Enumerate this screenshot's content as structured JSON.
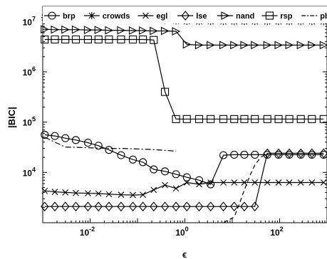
{
  "chart_data": {
    "type": "line",
    "xscale": "log",
    "yscale": "log",
    "xlim": [
      0.001,
      1000
    ],
    "ylim": [
      1000,
      20000000
    ],
    "xlabel": "ϵ",
    "ylabel": "|BIC|",
    "x_ticks": [
      {
        "base": "10",
        "exp": "-2",
        "v": 0.01
      },
      {
        "base": "10",
        "exp": "0",
        "v": 1
      },
      {
        "base": "10",
        "exp": "2",
        "v": 100
      }
    ],
    "y_ticks": [
      {
        "base": "10",
        "exp": "4",
        "v": 10000
      },
      {
        "base": "10",
        "exp": "5",
        "v": 100000
      },
      {
        "base": "10",
        "exp": "6",
        "v": 1000000
      },
      {
        "base": "10",
        "exp": "7",
        "v": 10000000
      }
    ],
    "legend_position": "top",
    "series": [
      {
        "name": "brp",
        "marker": "circle",
        "style": "solid",
        "x": [
          0.0011,
          0.0018,
          0.003,
          0.005,
          0.009,
          0.015,
          0.025,
          0.045,
          0.08,
          0.13,
          0.22,
          0.38,
          0.65,
          1.1,
          2.0,
          3.5,
          6.5,
          11,
          18,
          30,
          55,
          95,
          160,
          280,
          480,
          850
        ],
        "y": [
          56000,
          53000,
          48000,
          44000,
          39000,
          34000,
          28000,
          22000,
          18000,
          16000,
          11500,
          10500,
          9200,
          8000,
          7000,
          5800,
          22000,
          22500,
          22500,
          22500,
          22500,
          22500,
          22500,
          22500,
          22500,
          22500
        ]
      },
      {
        "name": "crowds",
        "marker": "asterisk",
        "style": "solid",
        "x": [
          0.0011,
          0.0018,
          0.003,
          0.005,
          0.009,
          0.015,
          0.025,
          0.045,
          0.08,
          0.13,
          0.22,
          0.38,
          0.65,
          1.1,
          2.0,
          3.5,
          6.5,
          11,
          18,
          30,
          55,
          95,
          160,
          280,
          480,
          850
        ],
        "y": [
          12000000,
          12000000,
          11800000,
          11800000,
          11800000,
          11800000,
          11800000,
          11800000,
          11600000,
          11500000,
          11200000,
          10600000,
          10300000,
          10100000,
          10000000,
          10000000,
          10000000,
          10000000,
          10000000,
          10000000,
          10000000,
          10000000,
          10000000,
          10000000,
          10000000,
          10000000
        ]
      },
      {
        "name": "egl",
        "marker": "x",
        "style": "solid",
        "x": [
          0.0011,
          0.0018,
          0.003,
          0.005,
          0.009,
          0.015,
          0.025,
          0.045,
          0.08,
          0.13,
          0.22,
          0.38,
          0.65,
          1.1,
          2.0,
          3.5,
          6.5,
          11,
          18,
          30,
          55,
          95,
          160,
          280,
          480,
          850
        ],
        "y": [
          4300,
          4100,
          4000,
          3900,
          3850,
          3800,
          3700,
          3600,
          3550,
          3600,
          4500,
          5600,
          4800,
          6300,
          5800,
          6300,
          6300,
          6300,
          6300,
          6300,
          6300,
          6300,
          6300,
          6300,
          6300,
          6300
        ]
      },
      {
        "name": "lse",
        "marker": "diamond",
        "style": "solid",
        "x": [
          0.0011,
          0.0018,
          0.003,
          0.005,
          0.009,
          0.015,
          0.025,
          0.045,
          0.08,
          0.13,
          0.22,
          0.38,
          0.65,
          1.1,
          2.0,
          3.5,
          6.5,
          11,
          18,
          30,
          55,
          95,
          160,
          280,
          480,
          850
        ],
        "y": [
          2100,
          2100,
          2100,
          2100,
          2100,
          2100,
          2100,
          2100,
          2100,
          2100,
          2100,
          2100,
          2100,
          2100,
          2100,
          2100,
          2100,
          2100,
          2100,
          2100,
          24000,
          24000,
          24000,
          24000,
          24000,
          24000
        ]
      },
      {
        "name": "nand",
        "marker": "triangle-right",
        "style": "solid",
        "x": [
          0.0011,
          0.0018,
          0.003,
          0.005,
          0.009,
          0.015,
          0.025,
          0.045,
          0.08,
          0.13,
          0.22,
          0.38,
          0.65,
          1.1,
          2.0,
          3.5,
          6.5,
          11,
          18,
          30,
          55,
          95,
          160,
          280,
          480,
          850
        ],
        "y": [
          7000000,
          6900000,
          6900000,
          6900000,
          6800000,
          6800000,
          6700000,
          6700000,
          6600000,
          6600000,
          6500000,
          6500000,
          6400000,
          3500000,
          3400000,
          3400000,
          3400000,
          3400000,
          3400000,
          3400000,
          3400000,
          3400000,
          3400000,
          3400000,
          3400000,
          3400000
        ]
      },
      {
        "name": "rsp",
        "marker": "square",
        "style": "solid",
        "x": [
          0.0011,
          0.0018,
          0.003,
          0.005,
          0.009,
          0.015,
          0.025,
          0.045,
          0.08,
          0.13,
          0.22,
          0.38,
          0.65,
          1.1,
          2.0,
          3.5,
          6.5,
          11,
          18,
          30,
          55,
          95,
          160,
          280,
          480,
          850
        ],
        "y": [
          4400000,
          4400000,
          4400000,
          4400000,
          4400000,
          4400000,
          4400000,
          4400000,
          4400000,
          4400000,
          4300000,
          400000,
          115000,
          115000,
          115000,
          115000,
          115000,
          115000,
          115000,
          115000,
          115000,
          115000,
          115000,
          115000,
          115000,
          115000
        ]
      },
      {
        "name": "pbr",
        "marker": "none",
        "style": "dashdot",
        "x": [
          0.0011,
          0.0018,
          0.003,
          0.005,
          0.009,
          0.015,
          0.025,
          0.045,
          0.08,
          0.13,
          0.22,
          0.38,
          0.65
        ],
        "y": [
          50000,
          40000,
          32000,
          31500,
          31000,
          30500,
          30000,
          30000,
          29500,
          29000,
          28500,
          27500,
          26500
        ]
      },
      {
        "name": "",
        "marker": "none",
        "style": "dashed",
        "x": [
          6.5,
          11,
          14,
          18,
          24,
          30,
          40,
          55
        ],
        "y": [
          1000,
          1300,
          2300,
          4500,
          9000,
          14000,
          20000,
          24000
        ]
      }
    ]
  }
}
